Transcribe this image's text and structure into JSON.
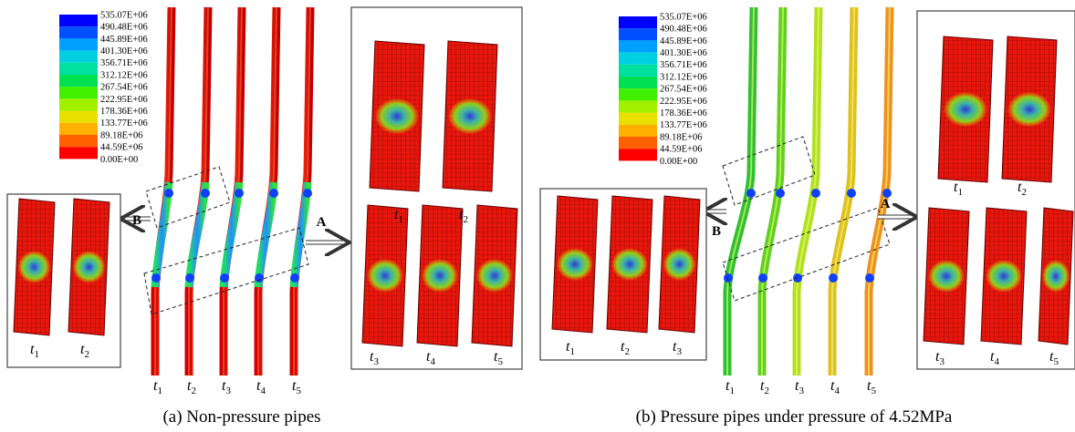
{
  "panels": [
    {
      "legend": [
        "535.07E+06",
        "490.48E+06",
        "445.89E+06",
        "401.30E+06",
        "356.71E+06",
        "312.12E+06",
        "267.54E+06",
        "222.95E+06",
        "178.36E+06",
        "133.77E+06",
        "89.18E+06",
        "44.59E+06",
        "0.00E+00"
      ],
      "pipe_labels": [
        {
          "var": "t",
          "sub": "1"
        },
        {
          "var": "t",
          "sub": "2"
        },
        {
          "var": "t",
          "sub": "3"
        },
        {
          "var": "t",
          "sub": "4"
        },
        {
          "var": "t",
          "sub": "5"
        }
      ],
      "callout_a": "A",
      "callout_b": "B",
      "zoom_a_labels": [
        {
          "var": "t",
          "sub": "1"
        },
        {
          "var": "t",
          "sub": "2"
        },
        {
          "var": "t",
          "sub": "3"
        },
        {
          "var": "t",
          "sub": "4"
        },
        {
          "var": "t",
          "sub": "5"
        }
      ],
      "zoom_b_labels": [
        {
          "var": "t",
          "sub": "1"
        },
        {
          "var": "t",
          "sub": "2"
        }
      ],
      "caption": "(a) Non-pressure pipes"
    },
    {
      "legend": [
        "535.07E+06",
        "490.48E+06",
        "445.89E+06",
        "401.30E+06",
        "356.71E+06",
        "312.12E+06",
        "267.54E+06",
        "222.95E+06",
        "178.36E+06",
        "133.77E+06",
        "89.18E+06",
        "44.59E+06",
        "0.00E+00"
      ],
      "pipe_labels": [
        {
          "var": "t",
          "sub": "1"
        },
        {
          "var": "t",
          "sub": "2"
        },
        {
          "var": "t",
          "sub": "3"
        },
        {
          "var": "t",
          "sub": "4"
        },
        {
          "var": "t",
          "sub": "5"
        }
      ],
      "callout_a": "A",
      "callout_b": "B",
      "zoom_a_labels": [
        {
          "var": "t",
          "sub": "1"
        },
        {
          "var": "t",
          "sub": "2"
        },
        {
          "var": "t",
          "sub": "3"
        },
        {
          "var": "t",
          "sub": "4"
        },
        {
          "var": "t",
          "sub": "5"
        }
      ],
      "zoom_b_labels": [
        {
          "var": "t",
          "sub": "1"
        },
        {
          "var": "t",
          "sub": "2"
        },
        {
          "var": "t",
          "sub": "3"
        }
      ],
      "caption": "(b) Pressure pipes under pressure of 4.52MPa"
    }
  ]
}
